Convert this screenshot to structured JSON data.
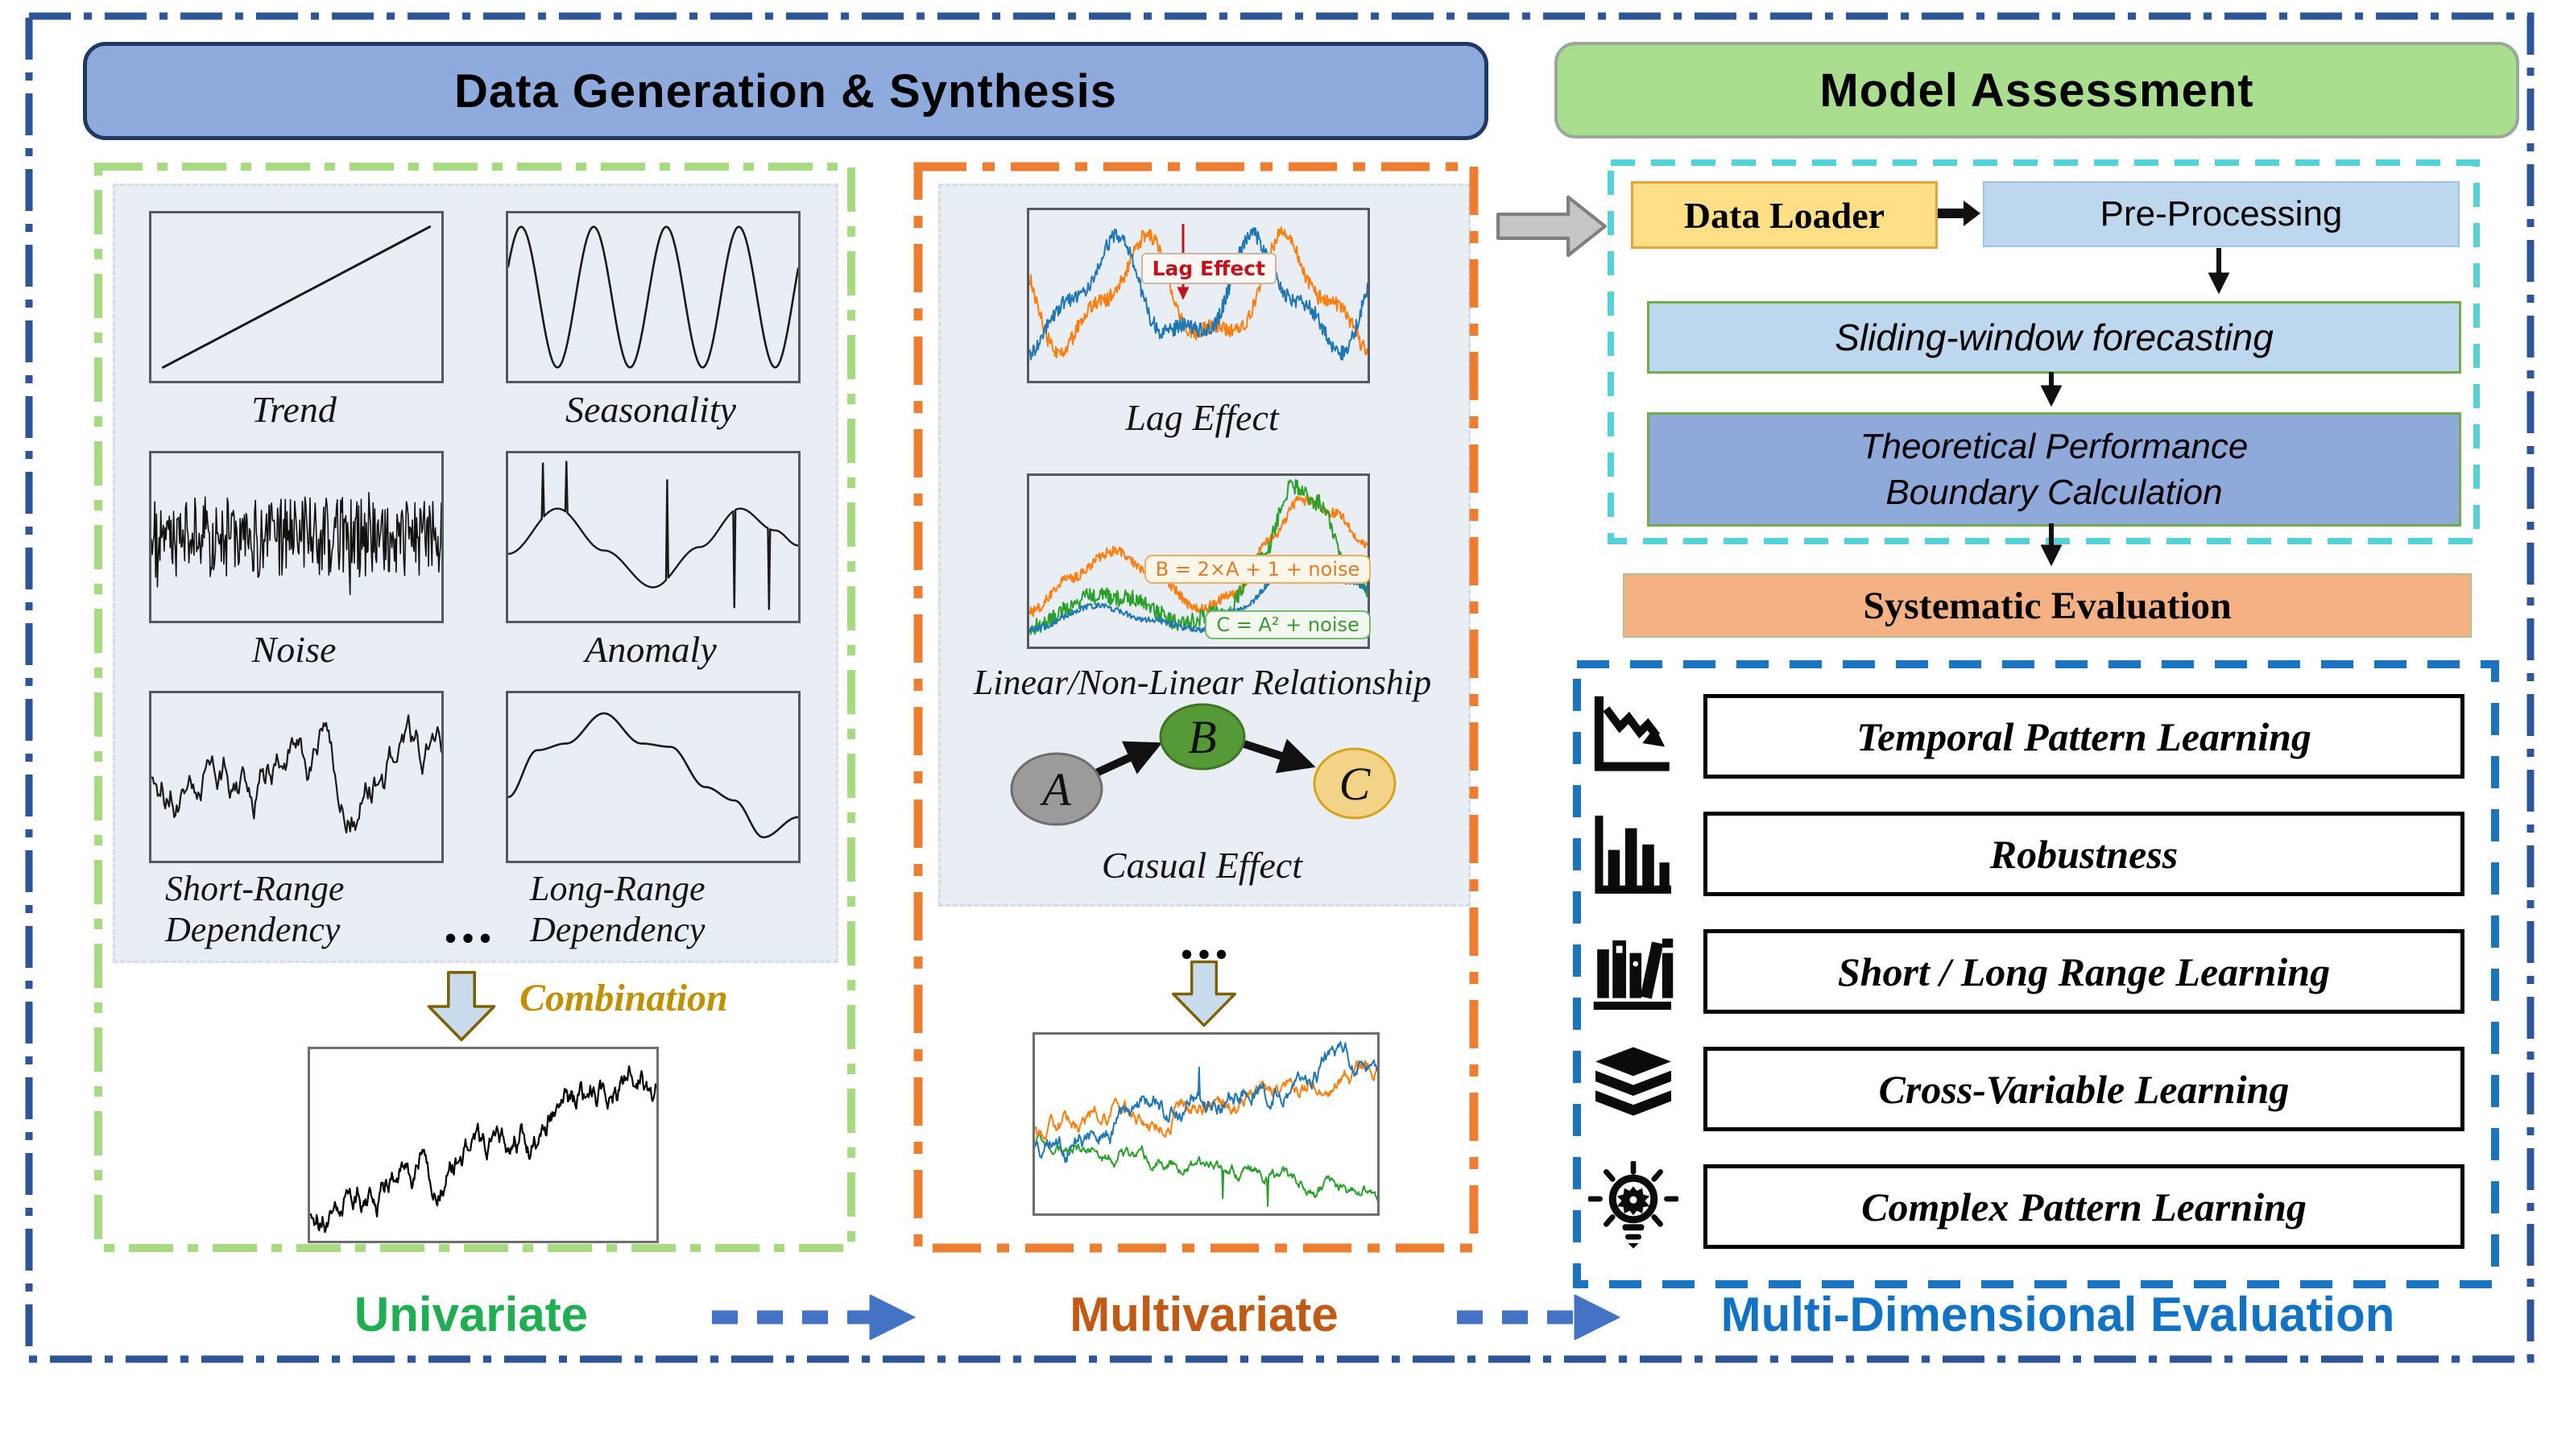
{
  "titles": {
    "data_generation": "Data Generation & Synthesis",
    "model_assessment": "Model Assessment"
  },
  "univariate": {
    "charts": [
      {
        "label": "Trend"
      },
      {
        "label": "Seasonality"
      },
      {
        "label": "Noise"
      },
      {
        "label": "Anomaly"
      },
      {
        "label": "Short-Range\nDependency"
      },
      {
        "label": "Long-Range\nDependency"
      }
    ],
    "ellipsis": "...",
    "combination": "Combination",
    "footer": "Univariate"
  },
  "multivariate": {
    "lag": {
      "caption": "Lag Effect",
      "annotation": "Lag Effect"
    },
    "relationship": {
      "caption": "Linear/Non-Linear Relationship",
      "annotation_b": "B = 2×A + 1 + noise",
      "annotation_c": "C = A² + noise"
    },
    "causal": {
      "caption": "Casual Effect",
      "nodes": [
        "A",
        "B",
        "C"
      ]
    },
    "ellipsis": "...",
    "footer": "Multivariate"
  },
  "assessment": {
    "pipeline": {
      "data_loader": "Data Loader",
      "pre_processing": "Pre-Processing",
      "sliding_window": "Sliding-window forecasting",
      "theoretical": "Theoretical Performance\nBoundary Calculation",
      "systematic": "Systematic Evaluation"
    },
    "evaluation": {
      "rows": [
        {
          "icon": "declining-chart",
          "label": "Temporal Pattern Learning"
        },
        {
          "icon": "bar-chart",
          "label": "Robustness"
        },
        {
          "icon": "bookshelf",
          "label": "Short / Long Range Learning"
        },
        {
          "icon": "book-stack",
          "label": "Cross-Variable Learning"
        },
        {
          "icon": "lightbulb-gear",
          "label": "Complex Pattern Learning"
        }
      ],
      "footer": "Multi-Dimensional Evaluation"
    }
  },
  "colors": {
    "blue_series": "#1F77B4",
    "orange_series": "#FF7F0E",
    "green_series": "#2CA02C",
    "panel_bg": "#E9EDF4",
    "header_blue": "#8FAADC",
    "header_green": "#A9DE8E",
    "outer_border": "#2E5597",
    "green_border": "#A7DB82",
    "orange_border": "#ED7D31",
    "cyan_border": "#55D1D8",
    "eval_border": "#1B74C0",
    "uni_green": "#1FAE52",
    "multi_orange": "#C05A15",
    "eval_blue": "#1273C4",
    "annotation_red": "#C0121F",
    "combination_gold": "#BF9000"
  }
}
